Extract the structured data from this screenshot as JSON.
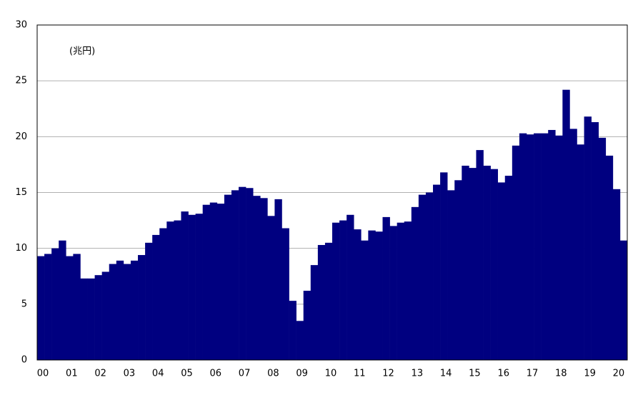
{
  "chart_data": {
    "type": "bar",
    "annotation": "(兆円)",
    "categories": [
      "00",
      null,
      null,
      null,
      "01",
      null,
      null,
      null,
      "02",
      null,
      null,
      null,
      "03",
      null,
      null,
      null,
      "04",
      null,
      null,
      null,
      "05",
      null,
      null,
      null,
      "06",
      null,
      null,
      null,
      "07",
      null,
      null,
      null,
      "08",
      null,
      null,
      null,
      "09",
      null,
      null,
      null,
      "10",
      null,
      null,
      null,
      "11",
      null,
      null,
      null,
      "12",
      null,
      null,
      null,
      "13",
      null,
      null,
      null,
      "14",
      null,
      null,
      null,
      "15",
      null,
      null,
      null,
      "16",
      null,
      null,
      null,
      "17",
      null,
      null,
      null,
      "18",
      null,
      null,
      null,
      "19",
      null,
      null,
      null,
      "20",
      null
    ],
    "values": [
      9.3,
      9.5,
      10.0,
      10.7,
      9.3,
      9.5,
      7.3,
      7.3,
      7.6,
      7.9,
      8.6,
      8.9,
      8.6,
      8.9,
      9.4,
      10.5,
      11.2,
      11.8,
      12.4,
      12.5,
      13.3,
      13.0,
      13.1,
      13.9,
      14.1,
      14.0,
      14.8,
      15.2,
      15.5,
      15.4,
      14.7,
      14.5,
      12.9,
      14.4,
      11.8,
      5.3,
      3.5,
      6.2,
      8.5,
      10.3,
      10.5,
      12.3,
      12.5,
      13.0,
      11.7,
      10.7,
      11.6,
      11.5,
      12.8,
      12.0,
      12.3,
      12.4,
      13.7,
      14.8,
      15.0,
      15.7,
      16.8,
      15.2,
      16.1,
      17.4,
      17.2,
      18.8,
      17.4,
      17.1,
      15.9,
      16.5,
      19.2,
      20.3,
      20.2,
      20.3,
      20.3,
      20.6,
      20.1,
      24.2,
      20.7,
      19.3,
      21.8,
      21.3,
      19.9,
      18.3,
      15.3,
      10.7
    ],
    "color": "#000080",
    "ylim": [
      0,
      30
    ],
    "yticks": [
      0,
      5,
      10,
      15,
      20,
      25,
      30
    ],
    "grid": true
  }
}
